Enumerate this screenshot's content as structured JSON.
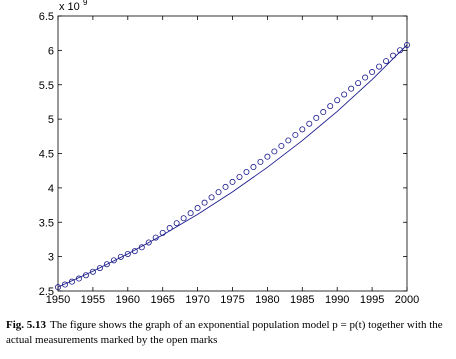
{
  "chart_data": {
    "type": "scatter-line",
    "ylabel_multiplier": "x 10",
    "ylabel_exponent": "9",
    "xlim": [
      1950,
      2000
    ],
    "xticks": [
      1950,
      1955,
      1960,
      1965,
      1970,
      1975,
      1980,
      1985,
      1990,
      1995,
      2000
    ],
    "ylim": [
      2.5,
      6.5
    ],
    "yticks": [
      2.5,
      3,
      3.5,
      4,
      4.5,
      5,
      5.5,
      6,
      6.5
    ],
    "series": [
      {
        "mark": "circle",
        "color": "#1a1a8c",
        "x": [
          1950,
          1951,
          1952,
          1953,
          1954,
          1955,
          1956,
          1957,
          1958,
          1959,
          1960,
          1961,
          1962,
          1963,
          1964,
          1965,
          1966,
          1967,
          1968,
          1969,
          1970,
          1971,
          1972,
          1973,
          1974,
          1975,
          1976,
          1977,
          1978,
          1979,
          1980,
          1981,
          1982,
          1983,
          1984,
          1985,
          1986,
          1987,
          1988,
          1989,
          1990,
          1991,
          1992,
          1993,
          1994,
          1995,
          1996,
          1997,
          1998,
          1999,
          2000
        ],
        "values": [
          2.556,
          2.594,
          2.636,
          2.681,
          2.729,
          2.78,
          2.833,
          2.889,
          2.946,
          2.997,
          3.039,
          3.08,
          3.136,
          3.206,
          3.277,
          3.346,
          3.416,
          3.486,
          3.558,
          3.632,
          3.707,
          3.785,
          3.862,
          3.938,
          4.014,
          4.087,
          4.159,
          4.231,
          4.303,
          4.378,
          4.454,
          4.53,
          4.61,
          4.69,
          4.77,
          4.851,
          4.933,
          5.018,
          5.103,
          5.189,
          5.275,
          5.359,
          5.443,
          5.524,
          5.605,
          5.685,
          5.764,
          5.844,
          5.923,
          6.002,
          6.079
        ]
      },
      {
        "mark": "line",
        "color": "#1a1a8c",
        "x": [
          1950,
          1955,
          1960,
          1965,
          1970,
          1975,
          1980,
          1985,
          1990,
          1995,
          2000
        ],
        "values": [
          2.556,
          2.787,
          3.04,
          3.315,
          3.615,
          3.942,
          4.299,
          4.688,
          5.112,
          5.575,
          6.08
        ]
      }
    ]
  },
  "caption": {
    "label": "Fig. 5.13",
    "text": "The figure shows the graph of an exponential population model p = p(t) together with the actual measurements marked by the open marks"
  }
}
